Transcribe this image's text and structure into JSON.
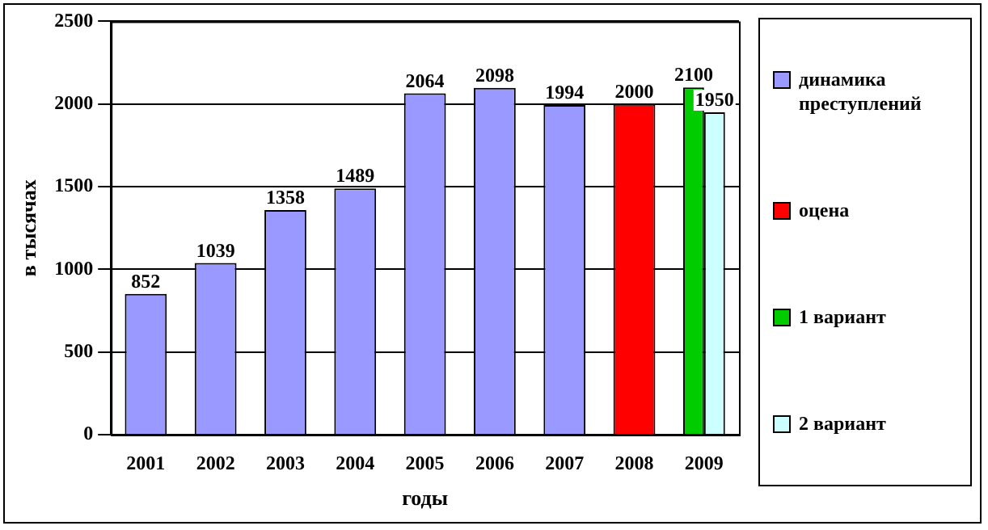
{
  "chart_data": {
    "type": "bar",
    "xlabel": "годы",
    "ylabel": "в тысячах",
    "categories": [
      "2001",
      "2002",
      "2003",
      "2004",
      "2005",
      "2006",
      "2007",
      "2008",
      "2009"
    ],
    "series": [
      {
        "name": "динамика преступлений",
        "color": "#9999ff",
        "values": [
          852,
          1039,
          1358,
          1489,
          2064,
          2098,
          1994,
          null,
          null
        ]
      },
      {
        "name": "оцена",
        "color": "#ff0000",
        "values": [
          null,
          null,
          null,
          null,
          null,
          null,
          null,
          2000,
          null
        ]
      },
      {
        "name": "1 вариант",
        "color": "#00cc00",
        "values": [
          null,
          null,
          null,
          null,
          null,
          null,
          null,
          null,
          2100
        ]
      },
      {
        "name": "2 вариант",
        "color": "#ccffff",
        "values": [
          null,
          null,
          null,
          null,
          null,
          null,
          null,
          null,
          1950
        ]
      }
    ],
    "ylim": [
      0,
      2500
    ],
    "yticks": [
      0,
      500,
      1000,
      1500,
      2000,
      2500
    ],
    "grid": "y",
    "legend": "right",
    "data_labels": true
  }
}
